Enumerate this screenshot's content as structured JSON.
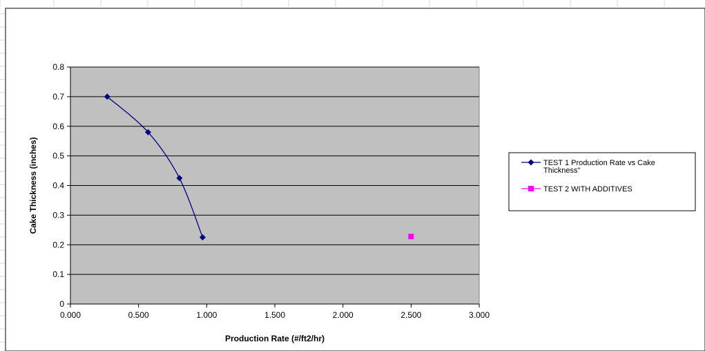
{
  "chart_data": {
    "type": "scatter",
    "title": "",
    "xlabel": "Production Rate (#/ft2/hr)",
    "ylabel": "Cake Thickness (inches)",
    "xlim": [
      0,
      3
    ],
    "ylim": [
      0,
      0.8
    ],
    "x_ticks": [
      "0.000",
      "0.500",
      "1.000",
      "1.500",
      "2.000",
      "2.500",
      "3.000"
    ],
    "y_ticks": [
      "0",
      "0.1",
      "0.2",
      "0.3",
      "0.4",
      "0.5",
      "0.6",
      "0.7",
      "0.8"
    ],
    "grid": "horizontal",
    "plot_background": "#c0c0c0",
    "legend_position": "right",
    "series": [
      {
        "name": "TEST 1 Production Rate vs Cake Thickness\"",
        "legend_lines": [
          "TEST 1 Production Rate vs Cake",
          "Thickness\""
        ],
        "color": "#000080",
        "marker": "diamond",
        "line": "smooth",
        "x": [
          0.27,
          0.57,
          0.8,
          0.97
        ],
        "y": [
          0.7,
          0.58,
          0.425,
          0.225
        ]
      },
      {
        "name": "TEST 2 WITH ADDITIVES",
        "legend_lines": [
          "TEST 2 WITH ADDITIVES"
        ],
        "color": "#ff00ff",
        "marker": "square",
        "line": "none",
        "x": [
          2.5
        ],
        "y": [
          0.228
        ]
      }
    ]
  }
}
